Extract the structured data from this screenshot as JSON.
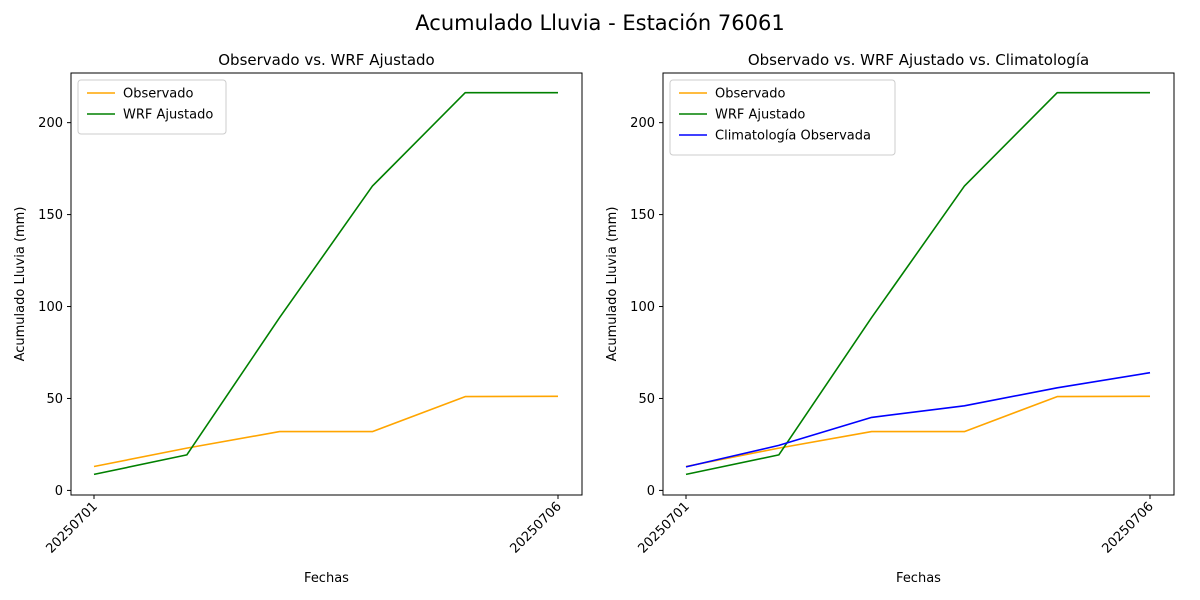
{
  "figure": {
    "suptitle": "Acumulado Lluvia - Estación 76061"
  },
  "chart_data": [
    {
      "type": "line",
      "title": "Observado vs. WRF Ajustado",
      "xlabel": "Fechas",
      "ylabel": "Acumulado Lluvia (mm)",
      "x": [
        "20250701",
        "20250702",
        "20250703",
        "20250704",
        "20250705",
        "20250706"
      ],
      "xticks": [
        "20250701",
        "20250706"
      ],
      "yticks": [
        0,
        50,
        100,
        150,
        200
      ],
      "ylim": [
        -2.5,
        227
      ],
      "legend_position": "upper-left",
      "series": [
        {
          "name": "Observado",
          "color": "#ffa500",
          "values": [
            13,
            23,
            32,
            32,
            51,
            51.2
          ]
        },
        {
          "name": "WRF Ajustado",
          "color": "#008000",
          "values": [
            8.7,
            19.3,
            94,
            165.5,
            216.3,
            216.3
          ]
        }
      ]
    },
    {
      "type": "line",
      "title": "Observado vs. WRF Ajustado vs. Climatología",
      "xlabel": "Fechas",
      "ylabel": "Acumulado Lluvia (mm)",
      "x": [
        "20250701",
        "20250702",
        "20250703",
        "20250704",
        "20250705",
        "20250706"
      ],
      "xticks": [
        "20250701",
        "20250706"
      ],
      "yticks": [
        0,
        50,
        100,
        150,
        200
      ],
      "ylim": [
        -2.5,
        227
      ],
      "legend_position": "upper-left",
      "series": [
        {
          "name": "Observado",
          "color": "#ffa500",
          "values": [
            13,
            23,
            32,
            32,
            51,
            51.2
          ]
        },
        {
          "name": "WRF Ajustado",
          "color": "#008000",
          "values": [
            8.7,
            19.3,
            94,
            165.5,
            216.3,
            216.3
          ]
        },
        {
          "name": "Climatología Observada",
          "color": "#0000ff",
          "values": [
            12.8,
            24.5,
            39.7,
            46,
            55.8,
            64
          ]
        }
      ]
    }
  ]
}
